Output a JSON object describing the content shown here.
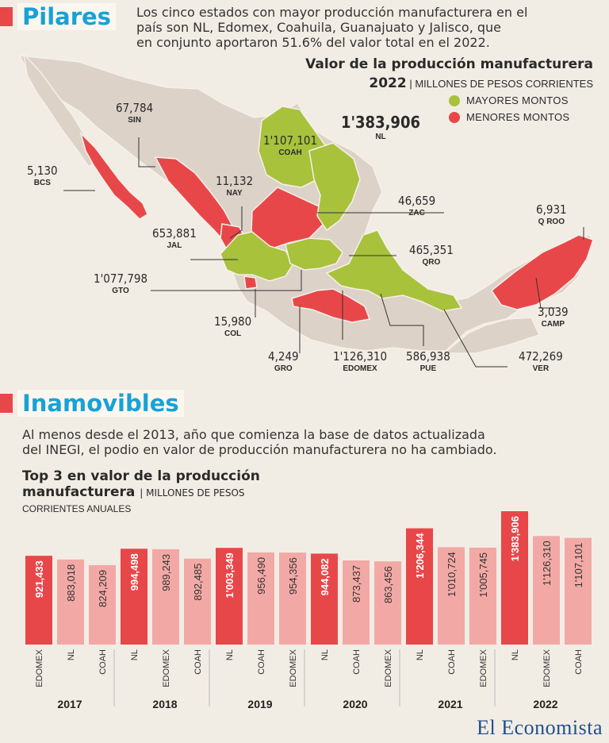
{
  "header": {
    "section1_title": "Pilares",
    "lede1_line1": "Los cinco estados con mayor producción manufacturera en el",
    "lede1_line2": "país son NL, Edomex, Coahuila, Guanajuato y Jalisco, que",
    "lede1_line3": "en conjunto aportaron 51.6% del valor total en el 2022."
  },
  "map": {
    "title": "Valor de la producción manufacturera",
    "year": "2022",
    "unit": "| MILLONES DE PESOS CORRIENTES",
    "legend_high": "MAYORES MONTOS",
    "legend_low": "MENORES MONTOS",
    "color_high": "#a8c23c",
    "color_low": "#e8474a",
    "color_other": "#ddd2c8",
    "labels": [
      {
        "value": "67,784",
        "state": "SIN"
      },
      {
        "value": "5,130",
        "state": "BCS"
      },
      {
        "value": "11,132",
        "state": "NAY"
      },
      {
        "value": "653,881",
        "state": "JAL"
      },
      {
        "value": "1'077,798",
        "state": "GTO"
      },
      {
        "value": "15,980",
        "state": "COL"
      },
      {
        "value": "4,249",
        "state": "GRO"
      },
      {
        "value": "1'126,310",
        "state": "EDOMEX"
      },
      {
        "value": "586,938",
        "state": "PUE"
      },
      {
        "value": "472,269",
        "state": "VER"
      },
      {
        "value": "3,039",
        "state": "CAMP"
      },
      {
        "value": "6,931",
        "state": "Q ROO"
      },
      {
        "value": "465,351",
        "state": "QRO"
      },
      {
        "value": "46,659",
        "state": "ZAC"
      },
      {
        "value": "1'107,101",
        "state": "COAH"
      },
      {
        "value": "1'383,906",
        "state": "NL"
      }
    ]
  },
  "section2": {
    "title": "Inamovibles",
    "lede_line1": "Al menos desde el 2013, año que comienza la base de datos actualizada",
    "lede_line2": "del INEGI, el podio en valor de producción manufacturera no ha cambiado."
  },
  "chart_data": {
    "type": "bar",
    "title_line1": "Top 3 en valor de la producción",
    "title_line2": "manufacturera",
    "unit": "| MILLONES DE PESOS",
    "unit_line2": "CORRIENTES ANUALES",
    "groups": [
      {
        "year": "2017",
        "bars": [
          {
            "state": "EDOMEX",
            "value": 921433,
            "label": "921,433"
          },
          {
            "state": "NL",
            "value": 883018,
            "label": "883,018"
          },
          {
            "state": "COAH",
            "value": 824209,
            "label": "824,209"
          }
        ]
      },
      {
        "year": "2018",
        "bars": [
          {
            "state": "NL",
            "value": 994498,
            "label": "994,498"
          },
          {
            "state": "EDOMEX",
            "value": 989243,
            "label": "989,243"
          },
          {
            "state": "COAH",
            "value": 892485,
            "label": "892,485"
          }
        ]
      },
      {
        "year": "2019",
        "bars": [
          {
            "state": "NL",
            "value": 1003349,
            "label": "1'003,349"
          },
          {
            "state": "COAH",
            "value": 956490,
            "label": "956,490"
          },
          {
            "state": "EDOMEX",
            "value": 954356,
            "label": "954,356"
          }
        ]
      },
      {
        "year": "2020",
        "bars": [
          {
            "state": "NL",
            "value": 944082,
            "label": "944,082"
          },
          {
            "state": "COAH",
            "value": 873437,
            "label": "873,437"
          },
          {
            "state": "EDOMEX",
            "value": 863456,
            "label": "863,456"
          }
        ]
      },
      {
        "year": "2021",
        "bars": [
          {
            "state": "NL",
            "value": 1206344,
            "label": "1'206,344"
          },
          {
            "state": "COAH",
            "value": 1010724,
            "label": "1'010,724"
          },
          {
            "state": "EDOMEX",
            "value": 1005745,
            "label": "1'005,745"
          }
        ]
      },
      {
        "year": "2022",
        "bars": [
          {
            "state": "NL",
            "value": 1383906,
            "label": "1'383,906"
          },
          {
            "state": "EDOMEX",
            "value": 1126310,
            "label": "1'126,310"
          },
          {
            "state": "COAH",
            "value": 1107101,
            "label": "1'107,101"
          }
        ]
      }
    ],
    "color_first": "#e8474a",
    "color_other": "#f2a9a5"
  },
  "footer": {
    "brand": "El Economista"
  }
}
